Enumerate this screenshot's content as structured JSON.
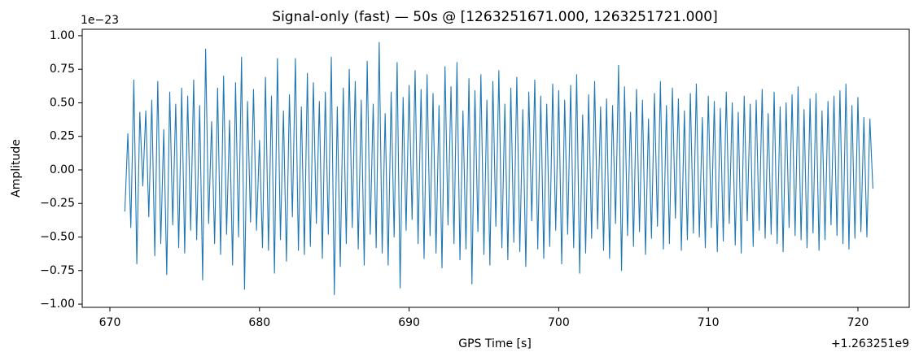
{
  "chart_data": {
    "type": "line",
    "title": "Signal-only (fast) — 50s @ [1263251671.000, 1263251721.000]",
    "x_label": "GPS Time [s]",
    "y_label": "Amplitude",
    "x_offset_label": "+1.263251e9",
    "y_offset_label": "1e−23",
    "xlim": [
      668.15,
      723.43
    ],
    "ylim": [
      -1.024,
      1.048
    ],
    "xticks": [
      670,
      680,
      690,
      700,
      710,
      720
    ],
    "yticks": [
      {
        "value": -1,
        "label": "−1.00"
      },
      {
        "value": -0.75,
        "label": "−0.75"
      },
      {
        "value": -0.5,
        "label": "−0.50"
      },
      {
        "value": -0.25,
        "label": "−0.25"
      },
      {
        "value": 0,
        "label": "0.00"
      },
      {
        "value": 0.25,
        "label": "0.25"
      },
      {
        "value": 0.5,
        "label": "0.50"
      },
      {
        "value": 0.75,
        "label": "0.75"
      },
      {
        "value": 1,
        "label": "1.00"
      }
    ],
    "grid": false,
    "series": [
      {
        "color": "#1f77b4",
        "x": [
          671,
          671.2,
          671.4,
          671.6,
          671.8,
          672,
          672.2,
          672.4,
          672.6,
          672.8,
          673,
          673.2,
          673.4,
          673.6,
          673.8,
          674,
          674.2,
          674.4,
          674.6,
          674.8,
          675,
          675.2,
          675.4,
          675.6,
          675.8,
          676,
          676.2,
          676.4,
          676.6,
          676.8,
          677,
          677.2,
          677.4,
          677.6,
          677.8,
          678,
          678.2,
          678.4,
          678.6,
          678.8,
          679,
          679.2,
          679.4,
          679.6,
          679.8,
          680,
          680.2,
          680.4,
          680.6,
          680.8,
          681,
          681.2,
          681.4,
          681.6,
          681.8,
          682,
          682.2,
          682.4,
          682.6,
          682.8,
          683,
          683.2,
          683.4,
          683.6,
          683.8,
          684,
          684.2,
          684.4,
          684.6,
          684.8,
          685,
          685.2,
          685.4,
          685.6,
          685.8,
          686,
          686.2,
          686.4,
          686.6,
          686.8,
          687,
          687.2,
          687.4,
          687.6,
          687.8,
          688,
          688.2,
          688.4,
          688.6,
          688.8,
          689,
          689.2,
          689.4,
          689.6,
          689.8,
          690,
          690.2,
          690.4,
          690.6,
          690.8,
          691,
          691.2,
          691.4,
          691.6,
          691.8,
          692,
          692.2,
          692.4,
          692.6,
          692.8,
          693,
          693.2,
          693.4,
          693.6,
          693.8,
          694,
          694.2,
          694.4,
          694.6,
          694.8,
          695,
          695.2,
          695.4,
          695.6,
          695.8,
          696,
          696.2,
          696.4,
          696.6,
          696.8,
          697,
          697.2,
          697.4,
          697.6,
          697.8,
          698,
          698.2,
          698.4,
          698.6,
          698.8,
          699,
          699.2,
          699.4,
          699.6,
          699.8,
          700,
          700.2,
          700.4,
          700.6,
          700.8,
          701,
          701.2,
          701.4,
          701.6,
          701.8,
          702,
          702.2,
          702.4,
          702.6,
          702.8,
          703,
          703.2,
          703.4,
          703.6,
          703.8,
          704,
          704.2,
          704.4,
          704.6,
          704.8,
          705,
          705.2,
          705.4,
          705.6,
          705.8,
          706,
          706.2,
          706.4,
          706.6,
          706.8,
          707,
          707.2,
          707.4,
          707.6,
          707.8,
          708,
          708.2,
          708.4,
          708.6,
          708.8,
          709,
          709.2,
          709.4,
          709.6,
          709.8,
          710,
          710.2,
          710.4,
          710.6,
          710.8,
          711,
          711.2,
          711.4,
          711.6,
          711.8,
          712,
          712.2,
          712.4,
          712.6,
          712.8,
          713,
          713.2,
          713.4,
          713.6,
          713.8,
          714,
          714.2,
          714.4,
          714.6,
          714.8,
          715,
          715.2,
          715.4,
          715.6,
          715.8,
          716,
          716.2,
          716.4,
          716.6,
          716.8,
          717,
          717.2,
          717.4,
          717.6,
          717.8,
          718,
          718.2,
          718.4,
          718.6,
          718.8,
          719,
          719.2,
          719.4,
          719.6,
          719.8,
          720,
          720.2,
          720.4,
          720.6,
          720.8,
          721
        ],
        "values": [
          -0.31,
          0.27,
          -0.43,
          0.67,
          -0.7,
          0.43,
          -0.12,
          0.44,
          -0.35,
          0.52,
          -0.64,
          0.66,
          -0.55,
          0.3,
          -0.78,
          0.58,
          -0.41,
          0.49,
          -0.58,
          0.61,
          -0.62,
          0.55,
          -0.45,
          0.67,
          -0.52,
          0.48,
          -0.82,
          0.9,
          -0.4,
          0.36,
          -0.55,
          0.61,
          -0.63,
          0.7,
          -0.48,
          0.37,
          -0.71,
          0.65,
          -0.5,
          0.84,
          -0.89,
          0.51,
          -0.39,
          0.6,
          -0.45,
          0.22,
          -0.58,
          0.69,
          -0.6,
          0.55,
          -0.77,
          0.83,
          -0.52,
          0.44,
          -0.68,
          0.56,
          -0.35,
          0.83,
          -0.6,
          0.47,
          -0.63,
          0.72,
          -0.57,
          0.65,
          -0.4,
          0.51,
          -0.66,
          0.58,
          -0.48,
          0.84,
          -0.93,
          0.47,
          -0.72,
          0.61,
          -0.55,
          0.75,
          -0.43,
          0.66,
          -0.59,
          0.52,
          -0.71,
          0.81,
          -0.48,
          0.49,
          -0.58,
          0.95,
          -0.62,
          0.42,
          -0.71,
          0.58,
          -0.5,
          0.8,
          -0.88,
          0.54,
          -0.45,
          0.63,
          -0.37,
          0.74,
          -0.55,
          0.6,
          -0.66,
          0.71,
          -0.49,
          0.57,
          -0.62,
          0.48,
          -0.73,
          0.77,
          -0.41,
          0.62,
          -0.55,
          0.8,
          -0.67,
          0.44,
          -0.59,
          0.68,
          -0.85,
          0.59,
          -0.46,
          0.71,
          -0.63,
          0.52,
          -0.71,
          0.66,
          -0.42,
          0.74,
          -0.58,
          0.49,
          -0.67,
          0.61,
          -0.54,
          0.69,
          -0.61,
          0.45,
          -0.72,
          0.58,
          -0.38,
          0.67,
          -0.59,
          0.55,
          -0.66,
          0.49,
          -0.57,
          0.64,
          -0.45,
          0.59,
          -0.7,
          0.52,
          -0.48,
          0.63,
          -0.58,
          0.71,
          -0.77,
          0.41,
          -0.62,
          0.56,
          -0.51,
          0.66,
          -0.44,
          0.47,
          -0.6,
          0.53,
          -0.66,
          0.48,
          -0.4,
          0.78,
          -0.75,
          0.62,
          -0.49,
          0.43,
          -0.57,
          0.6,
          -0.46,
          0.52,
          -0.63,
          0.38,
          -0.51,
          0.57,
          -0.42,
          0.66,
          -0.59,
          0.48,
          -0.55,
          0.61,
          -0.36,
          0.53,
          -0.6,
          0.44,
          -0.52,
          0.57,
          -0.47,
          0.64,
          -0.5,
          0.39,
          -0.58,
          0.55,
          -0.43,
          0.51,
          -0.61,
          0.46,
          -0.53,
          0.58,
          -0.4,
          0.5,
          -0.56,
          0.43,
          -0.62,
          0.55,
          -0.38,
          0.49,
          -0.57,
          0.52,
          -0.45,
          0.6,
          -0.51,
          0.42,
          -0.48,
          0.58,
          -0.55,
          0.47,
          -0.61,
          0.5,
          -0.43,
          0.56,
          -0.49,
          0.62,
          -0.52,
          0.45,
          -0.58,
          0.53,
          -0.47,
          0.57,
          -0.6,
          0.44,
          -0.52,
          0.51,
          -0.41,
          0.55,
          -0.49,
          0.59,
          -0.55,
          0.64,
          -0.59,
          0.48,
          -0.51,
          0.54,
          -0.46,
          0.39,
          -0.5,
          0.38,
          -0.14
        ]
      }
    ]
  }
}
